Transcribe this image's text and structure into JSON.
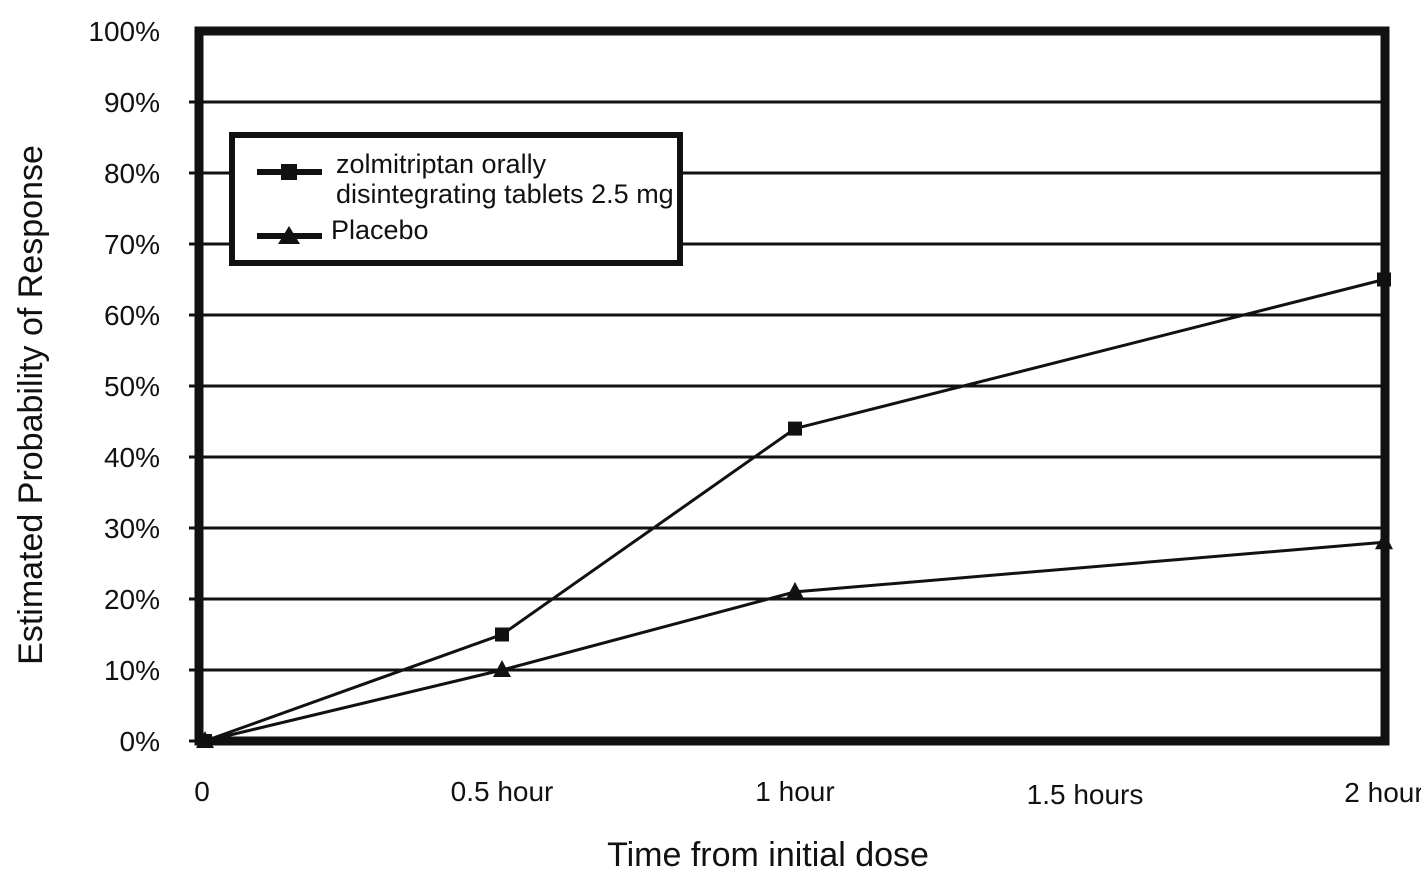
{
  "chart_data": {
    "type": "line",
    "title": "",
    "xlabel": "Time from initial dose",
    "ylabel": "Estimated Probability of Response",
    "x_ticks": [
      "0",
      "0.5 hour",
      "1 hour",
      "1.5 hours",
      "2 hour"
    ],
    "y_ticks": [
      "0%",
      "10%",
      "20%",
      "30%",
      "40%",
      "50%",
      "60%",
      "70%",
      "80%",
      "90%",
      "100%"
    ],
    "ylim": [
      0,
      100
    ],
    "xlim": [
      0,
      2
    ],
    "grid": "horizontal",
    "legend_position": "top-left",
    "legend_entries": [
      "zolmitriptan orally",
      "disintegrating tablets 2.5 mg",
      "Placebo"
    ],
    "series": [
      {
        "name": "zolmitriptan orally disintegrating tablets 2.5 mg",
        "marker": "square",
        "x": [
          0,
          0.5,
          1,
          2
        ],
        "values": [
          0,
          15,
          44,
          65
        ]
      },
      {
        "name": "Placebo",
        "marker": "triangle",
        "x": [
          0,
          0.5,
          1,
          2
        ],
        "values": [
          0,
          10,
          21,
          28
        ]
      }
    ],
    "colors": {
      "line": "#111111",
      "grid": "#111111",
      "background": "#ffffff"
    }
  }
}
